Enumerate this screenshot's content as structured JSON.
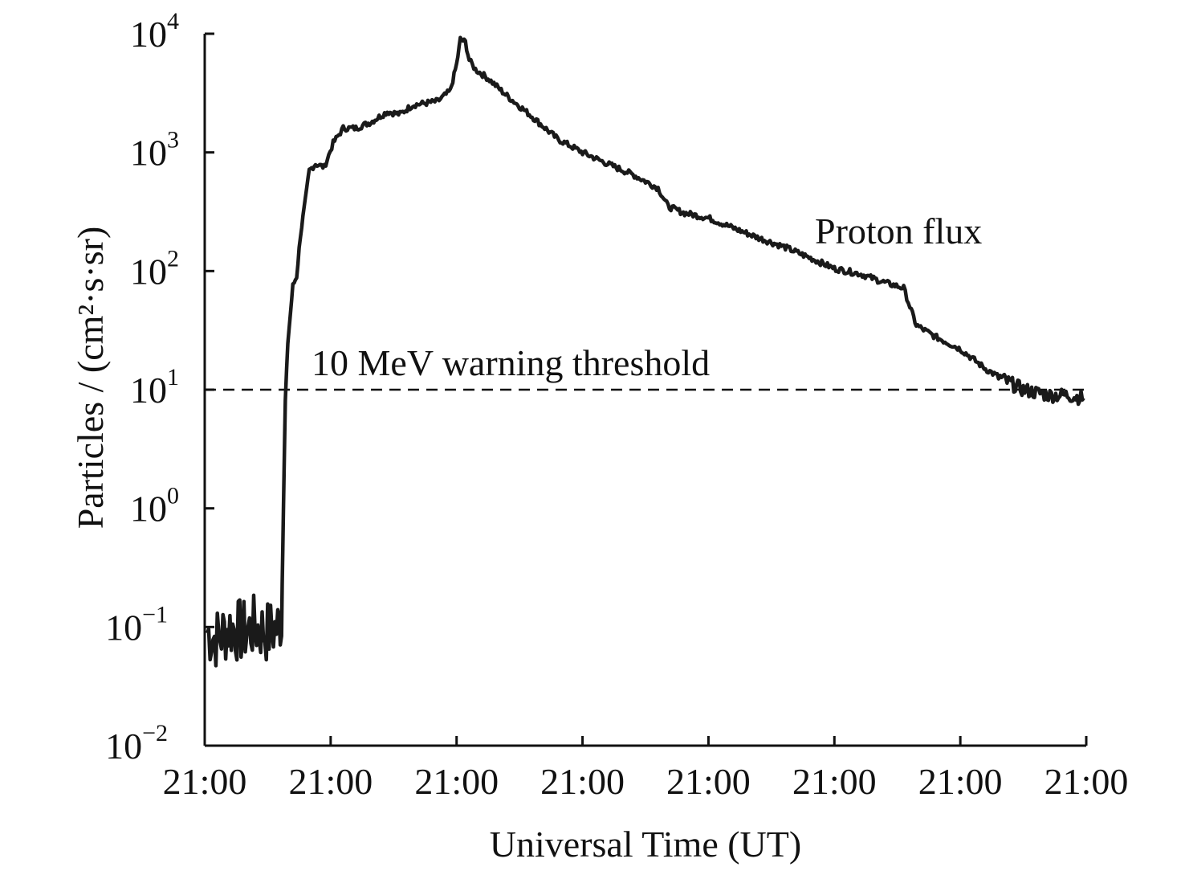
{
  "chart_data": {
    "type": "line",
    "title": "",
    "xlabel": "Universal Time (UT)",
    "ylabel": "Particles / (cm²·s·sr)",
    "y_scale": "log",
    "ylim": [
      0.01,
      10000
    ],
    "y_ticks": [
      {
        "value": 0.01,
        "base": "10",
        "exp": "−2"
      },
      {
        "value": 0.1,
        "base": "10",
        "exp": "−1"
      },
      {
        "value": 1,
        "base": "10",
        "exp": "0"
      },
      {
        "value": 10,
        "base": "10",
        "exp": "1"
      },
      {
        "value": 100,
        "base": "10",
        "exp": "2"
      },
      {
        "value": 1000,
        "base": "10",
        "exp": "3"
      },
      {
        "value": 10000,
        "base": "10",
        "exp": "4"
      }
    ],
    "x_tick_labels": [
      "21:00",
      "21:00",
      "21:00",
      "21:00",
      "21:00",
      "21:00",
      "21:00",
      "21:00"
    ],
    "xlim": [
      0,
      7
    ],
    "grid": false,
    "threshold": {
      "value": 10,
      "label": "10 MeV warning threshold",
      "style": "dashed"
    },
    "series": [
      {
        "name": "Proton flux",
        "color": "#1a1a1a",
        "points": [
          [
            0.02,
            0.09
          ],
          [
            0.1,
            0.08
          ],
          [
            0.2,
            0.1
          ],
          [
            0.3,
            0.09
          ],
          [
            0.4,
            0.1
          ],
          [
            0.5,
            0.09
          ],
          [
            0.58,
            0.1
          ],
          [
            0.61,
            0.12
          ],
          [
            0.62,
            0.5
          ],
          [
            0.63,
            2
          ],
          [
            0.64,
            8
          ],
          [
            0.66,
            25
          ],
          [
            0.7,
            75
          ],
          [
            0.73,
            90
          ],
          [
            0.76,
            200
          ],
          [
            0.8,
            400
          ],
          [
            0.83,
            700
          ],
          [
            0.88,
            800
          ],
          [
            0.95,
            750
          ],
          [
            1.02,
            1200
          ],
          [
            1.1,
            1600
          ],
          [
            1.2,
            1600
          ],
          [
            1.32,
            1800
          ],
          [
            1.45,
            2200
          ],
          [
            1.55,
            2100
          ],
          [
            1.65,
            2500
          ],
          [
            1.85,
            2700
          ],
          [
            1.95,
            3300
          ],
          [
            2.0,
            5500
          ],
          [
            2.03,
            9000
          ],
          [
            2.07,
            8500
          ],
          [
            2.1,
            6000
          ],
          [
            2.15,
            5000
          ],
          [
            2.25,
            4200
          ],
          [
            2.4,
            3000
          ],
          [
            2.6,
            2000
          ],
          [
            2.8,
            1300
          ],
          [
            3.0,
            1000
          ],
          [
            3.2,
            800
          ],
          [
            3.4,
            650
          ],
          [
            3.6,
            500
          ],
          [
            3.68,
            350
          ],
          [
            3.8,
            310
          ],
          [
            4.0,
            280
          ],
          [
            4.2,
            230
          ],
          [
            4.4,
            190
          ],
          [
            4.6,
            160
          ],
          [
            4.8,
            130
          ],
          [
            5.0,
            105
          ],
          [
            5.2,
            95
          ],
          [
            5.4,
            80
          ],
          [
            5.55,
            72
          ],
          [
            5.6,
            50
          ],
          [
            5.65,
            35
          ],
          [
            5.8,
            28
          ],
          [
            6.0,
            22
          ],
          [
            6.2,
            15
          ],
          [
            6.35,
            12
          ],
          [
            6.5,
            10
          ],
          [
            6.7,
            9
          ],
          [
            6.85,
            9
          ],
          [
            6.98,
            8.5
          ]
        ]
      }
    ],
    "annotations": [
      "Proton flux"
    ]
  }
}
